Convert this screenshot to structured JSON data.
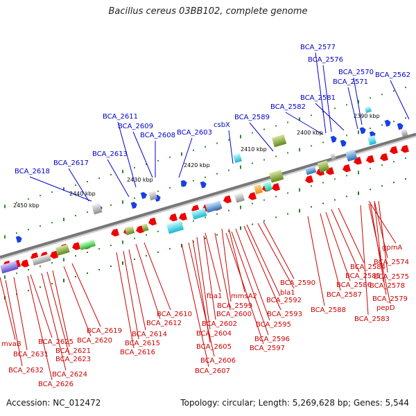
{
  "title": "Bacillus cereus 03BB102, complete genome",
  "footer": {
    "accession": "Accession: NC_012472",
    "summary": "Topology: circular; Length: 5,269,628 bp; Genes: 5,544"
  },
  "scale_labels": [
    "2390 kbp",
    "2400 kbp",
    "2410 kbp",
    "2420 kbp",
    "2430 kbp",
    "2440 kbp",
    "2450 kbp"
  ],
  "colors": {
    "top_labels": "#0000cc",
    "bottom_labels": "#cc0000",
    "backbone": "#777777",
    "tick": "#228b22"
  },
  "genes_top": [
    "BCA_2577",
    "BCA_2576",
    "BCA_2570",
    "BCA_2562",
    "BCA_2571",
    "BCA_2581",
    "BCA_2582",
    "BCA_2611",
    "BCA_2589",
    "BCA_2609",
    "BCA_2608",
    "BCA_2603",
    "csbX",
    "BCA_2613",
    "BCA_2617",
    "BCA_2618"
  ],
  "genes_bottom": [
    "gpmA",
    "BCA_2574",
    "BCA_2584",
    "BCA_2575",
    "BCA_2585",
    "BCA_2578",
    "BCA_2586",
    "BCA_2579",
    "BCA_2587",
    "pepD",
    "BCA_2588",
    "BCA_2583",
    "BCA_2590",
    "bla1",
    "BCA_2592",
    "mmsA2",
    "BCA_2599",
    "fba1",
    "BCA_2600",
    "BCA_2593",
    "BCA_2610",
    "BCA_2595",
    "BCA_2602",
    "BCA_2612",
    "BCA_2604",
    "BCA_2596",
    "BCA_2614",
    "BCA_2597",
    "BCA_2605",
    "BCA_2619",
    "BCA_2615",
    "BCA_2620",
    "BCA_2616",
    "BCA_2606",
    "BCA_2607",
    "BCA_2621",
    "mvaB",
    "BCA_2625",
    "BCA_2623",
    "BCA_2631",
    "BCA_2624",
    "BCA_2632",
    "BCA_2626"
  ]
}
